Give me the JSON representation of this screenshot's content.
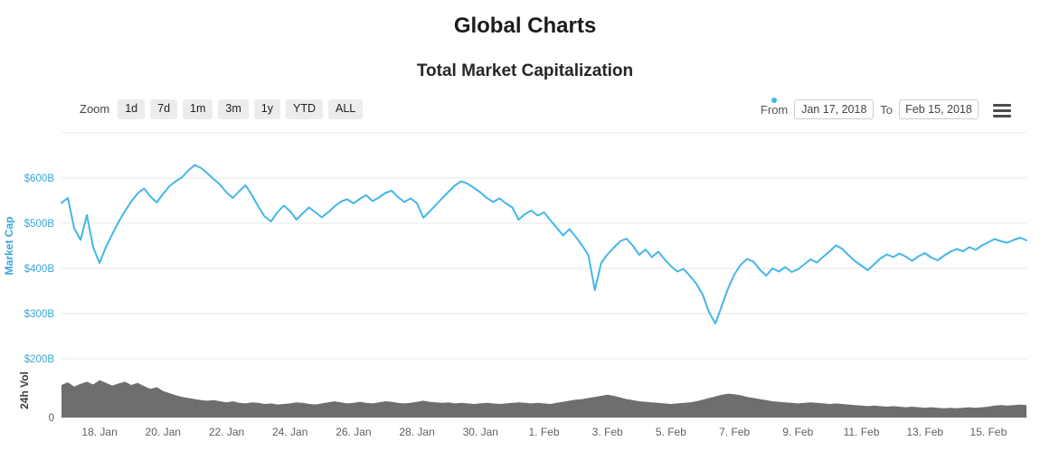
{
  "page": {
    "title": "Global Charts",
    "subtitle": "Total Market Capitalization"
  },
  "range_selector": {
    "zoom_label": "Zoom",
    "buttons": [
      "1d",
      "7d",
      "1m",
      "3m",
      "1y",
      "YTD",
      "ALL"
    ],
    "from_label": "From",
    "from_value": "Jan 17, 2018",
    "to_label": "To",
    "to_value": "Feb 15, 2018",
    "input_marker_color": "#45B6E8"
  },
  "export_menu": {
    "icon": "hamburger"
  },
  "chart_data": {
    "type": "line",
    "title": "Total Market Capitalization",
    "grid": true,
    "legend": false,
    "x_axis": {
      "start": "Jan 17, 2018",
      "end": "Feb 15, 2018",
      "total_days": 30.4,
      "first_tick_day": 1.2,
      "tick_interval_days": 2,
      "tick_labels": [
        "18. Jan",
        "20. Jan",
        "22. Jan",
        "24. Jan",
        "26. Jan",
        "28. Jan",
        "30. Jan",
        "1. Feb",
        "3. Feb",
        "5. Feb",
        "7. Feb",
        "9. Feb",
        "11. Feb",
        "13. Feb",
        "15. Feb"
      ]
    },
    "panes": [
      {
        "name": "market-cap",
        "type": "line",
        "ylabel": "Market Cap",
        "unit": "USD billions",
        "line_color": "#45B6E8",
        "axis_color": "#39A6DC",
        "ylim": [
          200,
          700
        ],
        "gridline_values": [
          700,
          600,
          500,
          400,
          300,
          200
        ],
        "yticks": [
          {
            "value": 600,
            "label": "$600B"
          },
          {
            "value": 500,
            "label": "$500B"
          },
          {
            "value": 400,
            "label": "$400B"
          },
          {
            "value": 300,
            "label": "$300B"
          },
          {
            "value": 200,
            "label": "$200B"
          }
        ],
        "values": [
          545,
          556,
          489,
          463,
          518,
          446,
          412,
          447,
          476,
          503,
          527,
          548,
          566,
          577,
          559,
          546,
          565,
          582,
          593,
          602,
          617,
          629,
          622,
          610,
          597,
          585,
          568,
          556,
          571,
          584,
          562,
          537,
          515,
          504,
          524,
          539,
          527,
          508,
          522,
          535,
          524,
          513,
          524,
          537,
          548,
          553,
          544,
          554,
          562,
          549,
          557,
          567,
          572,
          558,
          547,
          555,
          544,
          512,
          526,
          541,
          556,
          570,
          584,
          593,
          587,
          578,
          568,
          556,
          547,
          555,
          544,
          535,
          508,
          520,
          528,
          517,
          524,
          507,
          490,
          473,
          487,
          470,
          451,
          429,
          352,
          412,
          431,
          446,
          460,
          466,
          450,
          430,
          442,
          425,
          437,
          420,
          405,
          393,
          399,
          383,
          366,
          342,
          303,
          278,
          317,
          356,
          387,
          408,
          421,
          415,
          397,
          384,
          400,
          393,
          403,
          392,
          398,
          409,
          420,
          413,
          426,
          438,
          451,
          443,
          429,
          416,
          406,
          396,
          409,
          422,
          431,
          425,
          433,
          426,
          417,
          427,
          434,
          424,
          418,
          428,
          437,
          443,
          438,
          447,
          441,
          451,
          458,
          465,
          460,
          457,
          463,
          468,
          462
        ]
      },
      {
        "name": "24h-volume",
        "type": "area",
        "ylabel": "24h Vol",
        "unit": "USD billions",
        "fill_color": "#6E6E6E",
        "axis_color": "#5a5a5a",
        "ylim": [
          0,
          100
        ],
        "yticks": [
          {
            "value": 0,
            "label": "0"
          }
        ],
        "values": [
          60,
          65,
          57,
          62,
          66,
          61,
          69,
          64,
          59,
          63,
          66,
          60,
          64,
          58,
          53,
          56,
          49,
          45,
          41,
          38,
          36,
          34,
          32,
          31,
          32,
          30,
          28,
          30,
          27,
          26,
          28,
          27,
          25,
          26,
          24,
          25,
          26,
          28,
          27,
          25,
          24,
          26,
          28,
          30,
          28,
          26,
          27,
          29,
          27,
          26,
          28,
          30,
          29,
          27,
          26,
          27,
          29,
          31,
          29,
          28,
          27,
          28,
          26,
          27,
          26,
          25,
          26,
          27,
          26,
          25,
          26,
          27,
          28,
          27,
          26,
          27,
          26,
          25,
          27,
          29,
          31,
          33,
          34,
          36,
          38,
          40,
          42,
          40,
          37,
          34,
          32,
          30,
          29,
          28,
          27,
          26,
          25,
          26,
          27,
          28,
          30,
          33,
          36,
          39,
          42,
          44,
          43,
          41,
          38,
          36,
          34,
          32,
          30,
          29,
          28,
          27,
          26,
          27,
          28,
          27,
          26,
          25,
          26,
          25,
          24,
          23,
          22,
          21,
          22,
          21,
          20,
          21,
          20,
          19,
          20,
          19,
          18,
          19,
          18,
          17,
          18,
          17,
          18,
          19,
          18,
          19,
          20,
          22,
          23,
          22,
          23,
          24,
          23
        ]
      }
    ]
  }
}
